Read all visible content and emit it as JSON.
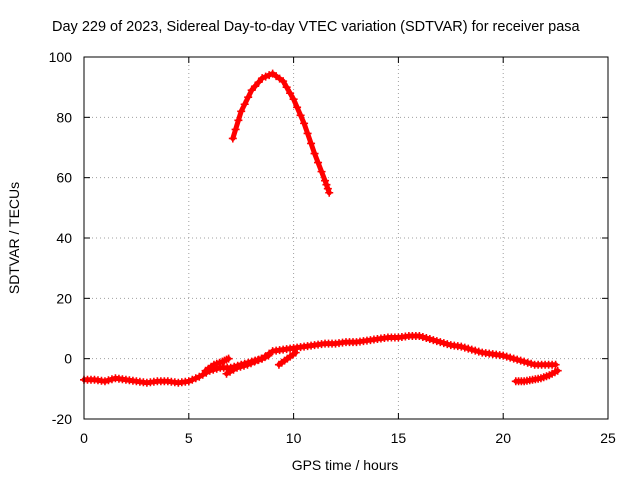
{
  "chart_data": {
    "type": "scatter",
    "title": "Day 229 of 2023, Sidereal Day-to-day VTEC variation (SDTVAR) for receiver pasa",
    "xlabel": "GPS time / hours",
    "ylabel": "SDTVAR / TECUs",
    "xlim": [
      0,
      25
    ],
    "ylim": [
      -20,
      100
    ],
    "xticks": [
      "0",
      "5",
      "10",
      "15",
      "20",
      "25"
    ],
    "yticks": [
      "-20",
      "0",
      "20",
      "40",
      "60",
      "80",
      "100"
    ],
    "grid": true,
    "legend": "none",
    "colors": {
      "series": "#ff0000",
      "grid": "#a0a0a0",
      "axis": "#000000"
    },
    "series": [
      {
        "name": "arc-high",
        "x": [
          7.1,
          7.5,
          8.0,
          8.5,
          9.0,
          9.5,
          10.0,
          10.5,
          11.0,
          11.5,
          11.7
        ],
        "y": [
          73,
          82,
          89,
          93,
          94.5,
          92,
          86,
          78,
          68,
          59,
          55
        ]
      },
      {
        "name": "main-band",
        "x": [
          0.0,
          0.5,
          1.0,
          1.5,
          2.0,
          2.5,
          3.0,
          3.5,
          4.0,
          4.5,
          5.0,
          5.5,
          6.0,
          6.5,
          7.0,
          7.5,
          8.0,
          8.5,
          9.0,
          9.5,
          10.0,
          10.5,
          11.0,
          11.5,
          12.0,
          12.5,
          13.0,
          13.5,
          14.0,
          14.5,
          15.0,
          15.5,
          16.0,
          16.5,
          17.0,
          17.5,
          18.0,
          18.5,
          19.0,
          19.5,
          20.0,
          20.5,
          21.0,
          21.5,
          22.0,
          22.5
        ],
        "y": [
          -7,
          -7,
          -7.5,
          -6.5,
          -7,
          -7.5,
          -8,
          -7.5,
          -7.5,
          -8,
          -7.5,
          -6,
          -4,
          -3,
          -3,
          -2,
          -1,
          0,
          2.5,
          3,
          3.5,
          4,
          4.5,
          5,
          5,
          5.5,
          5.5,
          6,
          6.5,
          7,
          7,
          7.5,
          7.5,
          6.5,
          5.5,
          4.5,
          4,
          3,
          2,
          1.5,
          1,
          0,
          -1,
          -2,
          -2,
          -2
        ]
      },
      {
        "name": "segment-a",
        "x": [
          5.8,
          6.2,
          6.6,
          6.9
        ],
        "y": [
          -4,
          -2,
          -1,
          0
        ]
      },
      {
        "name": "segment-b",
        "x": [
          6.8,
          7.3,
          7.8,
          8.3,
          8.8
        ],
        "y": [
          -5,
          -3,
          -2,
          -0.5,
          1
        ]
      },
      {
        "name": "segment-c",
        "x": [
          9.3,
          9.7,
          10.1
        ],
        "y": [
          -2,
          0,
          2
        ]
      },
      {
        "name": "tail-end",
        "x": [
          20.6,
          21.0,
          21.4,
          21.8,
          22.2,
          22.6
        ],
        "y": [
          -7.5,
          -7.5,
          -7,
          -6.5,
          -5.5,
          -4
        ]
      }
    ]
  }
}
